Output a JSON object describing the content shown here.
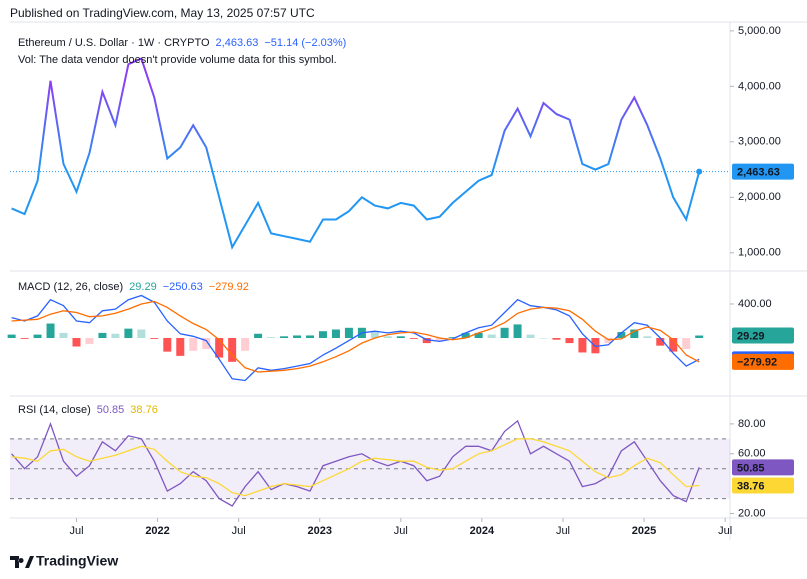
{
  "header": {
    "published": "Published on TradingView.com, May 13, 2025 07:57 UTC"
  },
  "footer": {
    "brand": "TradingView"
  },
  "chart_data": [
    {
      "type": "line",
      "title": "Ethereum / U.S. Dollar · 1W · CRYPTO",
      "price_label": "2,463.63",
      "change_label": "−51.14 (−2.03%)",
      "note": "Vol: The data vendor doesn't provide volume data for this symbol.",
      "line_gradient": [
        "#8b3ff5",
        "#2196f3"
      ],
      "last_color": "#2196f3",
      "xlim": [
        2021.09,
        2025.53
      ],
      "ylim": [
        690,
        5160
      ],
      "yticks": [
        {
          "value": 1000,
          "label": "1,000.00"
        },
        {
          "value": 2000,
          "label": "2,000.00"
        },
        {
          "value": 3000,
          "label": "3,000.00"
        },
        {
          "value": 4000,
          "label": "4,000.00"
        },
        {
          "value": 5000,
          "label": "5,000.00"
        }
      ],
      "x": [
        2021.1,
        2021.18,
        2021.26,
        2021.34,
        2021.42,
        2021.5,
        2021.58,
        2021.66,
        2021.74,
        2021.82,
        2021.9,
        2021.98,
        2022.06,
        2022.14,
        2022.22,
        2022.3,
        2022.38,
        2022.46,
        2022.54,
        2022.62,
        2022.7,
        2022.78,
        2022.86,
        2022.94,
        2023.02,
        2023.1,
        2023.18,
        2023.26,
        2023.34,
        2023.42,
        2023.5,
        2023.58,
        2023.66,
        2023.74,
        2023.82,
        2023.9,
        2023.98,
        2024.06,
        2024.14,
        2024.22,
        2024.3,
        2024.38,
        2024.46,
        2024.54,
        2024.62,
        2024.7,
        2024.78,
        2024.86,
        2024.94,
        2025.02,
        2025.1,
        2025.18,
        2025.26,
        2025.34
      ],
      "values": [
        1800,
        1700,
        2300,
        4100,
        2600,
        2100,
        2800,
        3900,
        3300,
        4400,
        4500,
        3800,
        2700,
        2900,
        3300,
        2900,
        2000,
        1100,
        1500,
        1900,
        1350,
        1300,
        1250,
        1200,
        1600,
        1600,
        1750,
        2000,
        1850,
        1800,
        1900,
        1850,
        1600,
        1650,
        1900,
        2100,
        2300,
        2400,
        3200,
        3600,
        3100,
        3700,
        3500,
        3400,
        2600,
        2500,
        2600,
        3400,
        3800,
        3300,
        2700,
        2000,
        1600,
        2463.63
      ],
      "last_value_label": "2,463.63"
    },
    {
      "type": "macd",
      "title": "MACD (12, 26, close)",
      "xlim": [
        2021.09,
        2025.53
      ],
      "ylim": [
        -670,
        776
      ],
      "yticks": [
        {
          "value": 400,
          "label": "400.00"
        }
      ],
      "hist_colors": [
        "#26a69a",
        "#b2dfdb",
        "#ffcdd2",
        "#ff5252"
      ],
      "x": [
        2021.1,
        2021.18,
        2021.26,
        2021.34,
        2021.42,
        2021.5,
        2021.58,
        2021.66,
        2021.74,
        2021.82,
        2021.9,
        2021.98,
        2022.06,
        2022.14,
        2022.22,
        2022.3,
        2022.38,
        2022.46,
        2022.54,
        2022.62,
        2022.7,
        2022.78,
        2022.86,
        2022.94,
        2023.02,
        2023.1,
        2023.18,
        2023.26,
        2023.34,
        2023.42,
        2023.5,
        2023.58,
        2023.66,
        2023.74,
        2023.82,
        2023.9,
        2023.98,
        2024.06,
        2024.14,
        2024.22,
        2024.3,
        2024.38,
        2024.46,
        2024.54,
        2024.62,
        2024.7,
        2024.78,
        2024.86,
        2024.94,
        2025.02,
        2025.1,
        2025.18,
        2025.26,
        2025.34
      ],
      "series": [
        {
          "kind": "histogram",
          "color": "#26a69a",
          "values": [
            40,
            -10,
            40,
            170,
            60,
            -100,
            -70,
            60,
            50,
            110,
            100,
            -10,
            -160,
            -210,
            -150,
            -130,
            -230,
            -280,
            -150,
            50,
            10,
            20,
            30,
            30,
            80,
            100,
            120,
            120,
            80,
            20,
            20,
            -10,
            -60,
            -40,
            10,
            60,
            60,
            40,
            120,
            160,
            40,
            0,
            -20,
            -60,
            -170,
            -180,
            -60,
            70,
            100,
            20,
            -90,
            -160,
            -130,
            29.29
          ]
        },
        {
          "kind": "line",
          "color": "#2962ff",
          "values": [
            240,
            200,
            260,
            450,
            380,
            200,
            180,
            320,
            340,
            450,
            500,
            420,
            200,
            50,
            20,
            -30,
            -250,
            -480,
            -500,
            -350,
            -380,
            -360,
            -330,
            -300,
            -200,
            -120,
            -30,
            60,
            80,
            60,
            80,
            60,
            -20,
            -40,
            -10,
            60,
            120,
            150,
            300,
            450,
            380,
            360,
            330,
            260,
            50,
            -100,
            -80,
            60,
            180,
            150,
            0,
            -180,
            -330,
            -250.63
          ],
          "last_label": "−250.63"
        },
        {
          "kind": "line",
          "color": "#ff6d00",
          "values": [
            200,
            210,
            220,
            280,
            320,
            300,
            250,
            260,
            290,
            340,
            400,
            430,
            360,
            260,
            170,
            100,
            -20,
            -200,
            -350,
            -400,
            -390,
            -380,
            -360,
            -330,
            -280,
            -220,
            -150,
            -60,
            0,
            40,
            60,
            70,
            40,
            0,
            -20,
            0,
            60,
            110,
            180,
            290,
            340,
            360,
            350,
            320,
            220,
            80,
            -20,
            -10,
            80,
            130,
            90,
            -20,
            -200,
            -279.92
          ],
          "last_label": "−279.92"
        }
      ]
    },
    {
      "type": "line",
      "title": "RSI (14, close)",
      "xlim": [
        2021.09,
        2025.53
      ],
      "ylim": [
        17,
        98
      ],
      "yticks": [
        {
          "value": 20,
          "label": "20.00"
        },
        {
          "value": 60,
          "label": "60.00"
        },
        {
          "value": 80,
          "label": "80.00"
        }
      ],
      "band": [
        30,
        70
      ],
      "midline": 50,
      "band_color": "#7e57c2",
      "xticks": [
        {
          "value": 2021.5,
          "label": "Jul"
        },
        {
          "value": 2022,
          "label": "2022"
        },
        {
          "value": 2022.5,
          "label": "Jul"
        },
        {
          "value": 2023,
          "label": "2023"
        },
        {
          "value": 2023.5,
          "label": "Jul"
        },
        {
          "value": 2024,
          "label": "2024"
        },
        {
          "value": 2024.5,
          "label": "Jul"
        },
        {
          "value": 2025,
          "label": "2025"
        },
        {
          "value": 2025.5,
          "label": "Jul"
        }
      ],
      "x": [
        2021.1,
        2021.18,
        2021.26,
        2021.34,
        2021.42,
        2021.5,
        2021.58,
        2021.66,
        2021.74,
        2021.82,
        2021.9,
        2021.98,
        2022.06,
        2022.14,
        2022.22,
        2022.3,
        2022.38,
        2022.46,
        2022.54,
        2022.62,
        2022.7,
        2022.78,
        2022.86,
        2022.94,
        2023.02,
        2023.1,
        2023.18,
        2023.26,
        2023.34,
        2023.42,
        2023.5,
        2023.58,
        2023.66,
        2023.74,
        2023.82,
        2023.9,
        2023.98,
        2024.06,
        2024.14,
        2024.22,
        2024.3,
        2024.38,
        2024.46,
        2024.54,
        2024.62,
        2024.7,
        2024.78,
        2024.86,
        2024.94,
        2025.02,
        2025.1,
        2025.18,
        2025.26,
        2025.34
      ],
      "series": [
        {
          "color": "#7e57c2",
          "values": [
            60,
            50,
            58,
            80,
            55,
            45,
            52,
            68,
            62,
            72,
            70,
            55,
            35,
            40,
            48,
            42,
            30,
            25,
            38,
            48,
            36,
            40,
            38,
            35,
            52,
            55,
            58,
            60,
            55,
            52,
            55,
            52,
            42,
            45,
            58,
            65,
            65,
            62,
            75,
            82,
            60,
            65,
            60,
            55,
            38,
            40,
            45,
            62,
            68,
            55,
            42,
            32,
            28,
            50.85
          ]
        },
        {
          "color": "#fdd835",
          "label_color": "#131722",
          "values": [
            58,
            57,
            55,
            62,
            63,
            58,
            55,
            57,
            59,
            62,
            65,
            63,
            55,
            48,
            45,
            44,
            40,
            34,
            32,
            35,
            38,
            40,
            39,
            38,
            42,
            46,
            50,
            55,
            57,
            56,
            55,
            55,
            51,
            49,
            50,
            55,
            60,
            62,
            66,
            70,
            70,
            68,
            65,
            62,
            55,
            48,
            44,
            46,
            52,
            57,
            54,
            46,
            38,
            38.76
          ]
        }
      ]
    }
  ]
}
